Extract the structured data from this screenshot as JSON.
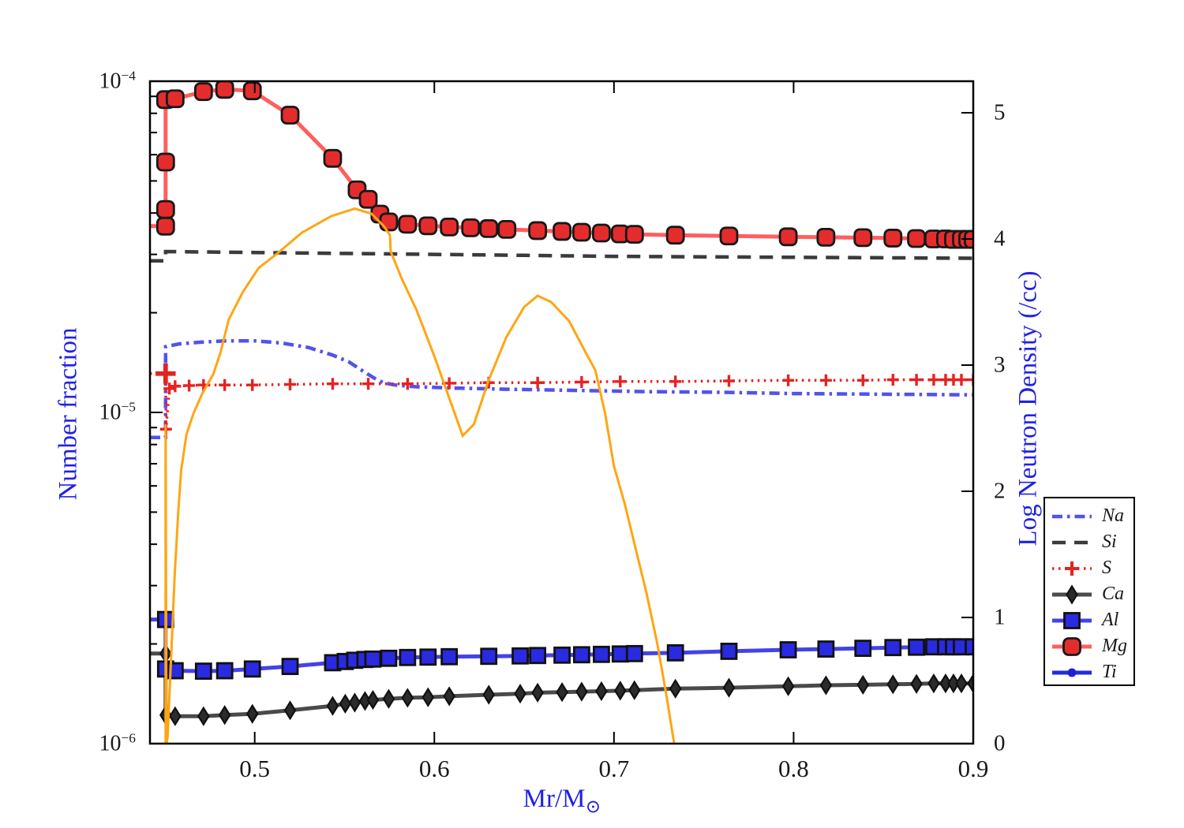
{
  "figure": {
    "background": "#ffffff",
    "frame_color": "#000000",
    "text_color": "#1a1a1a",
    "accent_blue": "#2121e6"
  },
  "chart_data": {
    "type": "line",
    "title": "",
    "x_axis": {
      "label": "Mr/M",
      "label_sub": "⊙",
      "min": 0.4417,
      "max": 0.9,
      "ticks": [
        0.5,
        0.6,
        0.7,
        0.8,
        0.9
      ],
      "tick_labels": [
        "0.5",
        "0.6",
        "0.7",
        "0.8",
        "0.9"
      ],
      "color": "#2121e6"
    },
    "y_left": {
      "label": "Number fraction",
      "scale": "log",
      "min": 1e-06,
      "max": 0.0001,
      "tick_values": [
        0.0001,
        1e-05,
        1e-06
      ],
      "tick_exponents": [
        "−4",
        "−5",
        "−6"
      ],
      "color": "#2121e6"
    },
    "y_right": {
      "label": "Log Neutron Density (/cc)",
      "scale": "linear",
      "min": 0,
      "max": 5.25,
      "ticks": [
        0,
        1,
        2,
        3,
        4,
        5
      ],
      "tick_labels": [
        "0",
        "1",
        "2",
        "3",
        "4",
        "5"
      ],
      "color": "#2121e6"
    },
    "legend_position": "outside-right",
    "series": [
      {
        "id": "Na",
        "label": "Na",
        "axis": "left",
        "in_legend": true,
        "color": "#5252ee",
        "linestyle": "dashdot",
        "line_width": 4.5,
        "marker": "none",
        "points": [
          [
            0.4417,
            8.4e-06
          ],
          [
            0.4504,
            8.4e-06
          ],
          [
            0.4504,
            1.58e-05
          ],
          [
            0.458,
            1.61e-05
          ],
          [
            0.47,
            1.63e-05
          ],
          [
            0.485,
            1.645e-05
          ],
          [
            0.5,
            1.645e-05
          ],
          [
            0.515,
            1.62e-05
          ],
          [
            0.53,
            1.57e-05
          ],
          [
            0.5434,
            1.49e-05
          ],
          [
            0.5525,
            1.42e-05
          ],
          [
            0.5605,
            1.33e-05
          ],
          [
            0.5665,
            1.27e-05
          ],
          [
            0.5715,
            1.23e-05
          ],
          [
            0.578,
            1.21e-05
          ],
          [
            0.59,
            1.195e-05
          ],
          [
            0.61,
            1.185e-05
          ],
          [
            0.64,
            1.175e-05
          ],
          [
            0.68,
            1.165e-05
          ],
          [
            0.72,
            1.155e-05
          ],
          [
            0.76,
            1.15e-05
          ],
          [
            0.8,
            1.14e-05
          ],
          [
            0.85,
            1.135e-05
          ],
          [
            0.9,
            1.13e-05
          ]
        ]
      },
      {
        "id": "Si",
        "label": "Si",
        "axis": "left",
        "in_legend": true,
        "color": "#3b3b3b",
        "linestyle": "dashed",
        "line_width": 4.5,
        "marker": "none",
        "points": [
          [
            0.4417,
            2.87e-05
          ],
          [
            0.4504,
            2.87e-05
          ],
          [
            0.4504,
            3.06e-05
          ],
          [
            0.5,
            3.04e-05
          ],
          [
            0.55,
            3.02e-05
          ],
          [
            0.6,
            3e-05
          ],
          [
            0.65,
            2.98e-05
          ],
          [
            0.7,
            2.96e-05
          ],
          [
            0.75,
            2.95e-05
          ],
          [
            0.8,
            2.94e-05
          ],
          [
            0.85,
            2.93e-05
          ],
          [
            0.9,
            2.92e-05
          ]
        ]
      },
      {
        "id": "S",
        "label": "S",
        "axis": "left",
        "in_legend": true,
        "color": "#e62222",
        "linestyle": "dotted",
        "line_width": 3.5,
        "marker": "plus",
        "marker_size": 15,
        "marker_fill": "#e62222",
        "marker_edge": "#e62222",
        "skip_first_marker": true,
        "big_marker_index": 1,
        "big_marker_scale": 1.7,
        "points": [
          [
            0.4417,
            1.31e-05
          ],
          [
            0.4504,
            1.31e-05
          ],
          [
            0.4506,
            8.9e-06
          ],
          [
            0.4525,
            1.18e-05
          ],
          [
            0.4557,
            1.2e-05
          ],
          [
            0.4635,
            1.205e-05
          ],
          [
            0.4715,
            1.21e-05
          ],
          [
            0.4833,
            1.21e-05
          ],
          [
            0.4987,
            1.21e-05
          ],
          [
            0.5197,
            1.215e-05
          ],
          [
            0.5434,
            1.22e-05
          ],
          [
            0.5632,
            1.22e-05
          ],
          [
            0.5851,
            1.22e-05
          ],
          [
            0.6083,
            1.225e-05
          ],
          [
            0.6303,
            1.23e-05
          ],
          [
            0.6575,
            1.23e-05
          ],
          [
            0.682,
            1.235e-05
          ],
          [
            0.7035,
            1.24e-05
          ],
          [
            0.7342,
            1.24e-05
          ],
          [
            0.764,
            1.245e-05
          ],
          [
            0.797,
            1.25e-05
          ],
          [
            0.818,
            1.25e-05
          ],
          [
            0.8386,
            1.25e-05
          ],
          [
            0.8553,
            1.255e-05
          ],
          [
            0.8684,
            1.255e-05
          ],
          [
            0.878,
            1.255e-05
          ],
          [
            0.8846,
            1.255e-05
          ],
          [
            0.889,
            1.255e-05
          ],
          [
            0.8934,
            1.255e-05
          ],
          [
            0.9,
            1.255e-05
          ]
        ]
      },
      {
        "id": "Ca",
        "label": "Ca",
        "axis": "left",
        "in_legend": true,
        "color": "#4a4a4a",
        "linestyle": "solid",
        "line_width": 5,
        "marker": "diamond",
        "marker_size": 21,
        "marker_fill": "#2b2b2b",
        "marker_edge": "#111111",
        "skip_first_marker": true,
        "points": [
          [
            0.4417,
            1.87e-06
          ],
          [
            0.4504,
            1.87e-06
          ],
          [
            0.4504,
            1.7e-06
          ],
          [
            0.4504,
            1.22e-06
          ],
          [
            0.4557,
            1.21e-06
          ],
          [
            0.4715,
            1.21e-06
          ],
          [
            0.4833,
            1.22e-06
          ],
          [
            0.4987,
            1.23e-06
          ],
          [
            0.5197,
            1.26e-06
          ],
          [
            0.5434,
            1.3e-06
          ],
          [
            0.5504,
            1.32e-06
          ],
          [
            0.5557,
            1.33e-06
          ],
          [
            0.5614,
            1.345e-06
          ],
          [
            0.5658,
            1.355e-06
          ],
          [
            0.5746,
            1.365e-06
          ],
          [
            0.5851,
            1.375e-06
          ],
          [
            0.5965,
            1.38e-06
          ],
          [
            0.6083,
            1.39e-06
          ],
          [
            0.6303,
            1.405e-06
          ],
          [
            0.6478,
            1.415e-06
          ],
          [
            0.6575,
            1.425e-06
          ],
          [
            0.6711,
            1.43e-06
          ],
          [
            0.682,
            1.435e-06
          ],
          [
            0.693,
            1.44e-06
          ],
          [
            0.7035,
            1.445e-06
          ],
          [
            0.7114,
            1.45e-06
          ],
          [
            0.7342,
            1.465e-06
          ],
          [
            0.764,
            1.475e-06
          ],
          [
            0.797,
            1.49e-06
          ],
          [
            0.818,
            1.5e-06
          ],
          [
            0.8386,
            1.505e-06
          ],
          [
            0.8553,
            1.51e-06
          ],
          [
            0.8684,
            1.515e-06
          ],
          [
            0.878,
            1.52e-06
          ],
          [
            0.8846,
            1.52e-06
          ],
          [
            0.889,
            1.52e-06
          ],
          [
            0.8934,
            1.52e-06
          ],
          [
            0.9,
            1.52e-06
          ]
        ]
      },
      {
        "id": "Al",
        "label": "Al",
        "axis": "left",
        "in_legend": true,
        "color": "#4343e8",
        "linestyle": "solid",
        "line_width": 5,
        "marker": "square",
        "marker_size": 19,
        "marker_fill": "#2a2ae0",
        "marker_edge": "#111111",
        "skip_first_marker": true,
        "points": [
          [
            0.4417,
            2.37e-06
          ],
          [
            0.4504,
            2.37e-06
          ],
          [
            0.4504,
            1.68e-06
          ],
          [
            0.4557,
            1.66e-06
          ],
          [
            0.4715,
            1.655e-06
          ],
          [
            0.4833,
            1.66e-06
          ],
          [
            0.4987,
            1.68e-06
          ],
          [
            0.5197,
            1.71e-06
          ],
          [
            0.5434,
            1.755e-06
          ],
          [
            0.5504,
            1.77e-06
          ],
          [
            0.5557,
            1.785e-06
          ],
          [
            0.5614,
            1.795e-06
          ],
          [
            0.5658,
            1.8e-06
          ],
          [
            0.5746,
            1.81e-06
          ],
          [
            0.5851,
            1.82e-06
          ],
          [
            0.5965,
            1.825e-06
          ],
          [
            0.6083,
            1.83e-06
          ],
          [
            0.6303,
            1.835e-06
          ],
          [
            0.6478,
            1.84e-06
          ],
          [
            0.6575,
            1.845e-06
          ],
          [
            0.6711,
            1.85e-06
          ],
          [
            0.682,
            1.855e-06
          ],
          [
            0.693,
            1.86e-06
          ],
          [
            0.7035,
            1.865e-06
          ],
          [
            0.7114,
            1.87e-06
          ],
          [
            0.7342,
            1.88e-06
          ],
          [
            0.764,
            1.9e-06
          ],
          [
            0.797,
            1.92e-06
          ],
          [
            0.818,
            1.93e-06
          ],
          [
            0.8386,
            1.94e-06
          ],
          [
            0.8553,
            1.95e-06
          ],
          [
            0.8684,
            1.955e-06
          ],
          [
            0.878,
            1.96e-06
          ],
          [
            0.8846,
            1.96e-06
          ],
          [
            0.889,
            1.96e-06
          ],
          [
            0.8934,
            1.96e-06
          ],
          [
            0.9,
            1.96e-06
          ]
        ]
      },
      {
        "id": "Mg",
        "label": "Mg",
        "axis": "left",
        "in_legend": true,
        "color": "#ff5f5f",
        "linestyle": "solid",
        "line_width": 5,
        "marker": "rounded-square",
        "marker_size": 21,
        "marker_fill": "#e52c2c",
        "marker_edge": "#181818",
        "skip_first_marker": true,
        "points": [
          [
            0.4417,
            3.65e-05
          ],
          [
            0.4504,
            3.65e-05
          ],
          [
            0.4504,
            4.1e-05
          ],
          [
            0.4504,
            5.7e-05
          ],
          [
            0.4504,
            8.8e-05
          ],
          [
            0.4557,
            8.85e-05
          ],
          [
            0.4715,
            9.3e-05
          ],
          [
            0.4833,
            9.45e-05
          ],
          [
            0.4987,
            9.35e-05
          ],
          [
            0.5197,
            7.9e-05
          ],
          [
            0.5434,
            5.85e-05
          ],
          [
            0.557,
            4.7e-05
          ],
          [
            0.5632,
            4.4e-05
          ],
          [
            0.5697,
            3.97e-05
          ],
          [
            0.5746,
            3.76e-05
          ],
          [
            0.5851,
            3.7e-05
          ],
          [
            0.5965,
            3.66e-05
          ],
          [
            0.6083,
            3.63e-05
          ],
          [
            0.6202,
            3.61e-05
          ],
          [
            0.6303,
            3.59e-05
          ],
          [
            0.6404,
            3.57e-05
          ],
          [
            0.6575,
            3.54e-05
          ],
          [
            0.6711,
            3.52e-05
          ],
          [
            0.682,
            3.5e-05
          ],
          [
            0.693,
            3.48e-05
          ],
          [
            0.7035,
            3.46e-05
          ],
          [
            0.7114,
            3.45e-05
          ],
          [
            0.7342,
            3.43e-05
          ],
          [
            0.764,
            3.41e-05
          ],
          [
            0.797,
            3.39e-05
          ],
          [
            0.818,
            3.38e-05
          ],
          [
            0.8386,
            3.37e-05
          ],
          [
            0.8553,
            3.36e-05
          ],
          [
            0.8684,
            3.35e-05
          ],
          [
            0.878,
            3.34e-05
          ],
          [
            0.8846,
            3.34e-05
          ],
          [
            0.889,
            3.33e-05
          ],
          [
            0.8934,
            3.33e-05
          ],
          [
            0.8969,
            3.33e-05
          ],
          [
            0.9,
            3.33e-05
          ]
        ]
      },
      {
        "id": "Ti",
        "label": "Ti",
        "axis": "left",
        "in_legend": true,
        "color": "#2828d8",
        "linestyle": "solid",
        "line_width": 5,
        "marker": "circle",
        "marker_size": 11,
        "marker_fill": "#2020d0",
        "marker_edge": "#2020d0",
        "points": []
      },
      {
        "id": "neutron_density",
        "label": "",
        "axis": "right",
        "in_legend": false,
        "color": "#ffa513",
        "linestyle": "solid",
        "line_width": 3,
        "marker": "none",
        "points": [
          [
            0.4504,
            0.0
          ],
          [
            0.4504,
            2.53
          ],
          [
            0.4509,
            0.0
          ],
          [
            0.4515,
            0.05
          ],
          [
            0.4535,
            0.7
          ],
          [
            0.4555,
            1.35
          ],
          [
            0.4575,
            1.85
          ],
          [
            0.459,
            2.16
          ],
          [
            0.462,
            2.45
          ],
          [
            0.466,
            2.62
          ],
          [
            0.471,
            2.78
          ],
          [
            0.477,
            2.93
          ],
          [
            0.481,
            3.1
          ],
          [
            0.4855,
            3.36
          ],
          [
            0.4934,
            3.58
          ],
          [
            0.5022,
            3.77
          ],
          [
            0.513,
            3.89
          ],
          [
            0.5263,
            4.05
          ],
          [
            0.5425,
            4.18
          ],
          [
            0.5557,
            4.24
          ],
          [
            0.565,
            4.2
          ],
          [
            0.572,
            4.1
          ],
          [
            0.5753,
            4.03
          ],
          [
            0.5757,
            3.9
          ],
          [
            0.582,
            3.68
          ],
          [
            0.59,
            3.44
          ],
          [
            0.6,
            3.07
          ],
          [
            0.608,
            2.75
          ],
          [
            0.6158,
            2.44
          ],
          [
            0.622,
            2.53
          ],
          [
            0.63,
            2.87
          ],
          [
            0.64,
            3.22
          ],
          [
            0.65,
            3.46
          ],
          [
            0.6575,
            3.55
          ],
          [
            0.665,
            3.5
          ],
          [
            0.675,
            3.35
          ],
          [
            0.685,
            3.08
          ],
          [
            0.6896,
            2.96
          ],
          [
            0.695,
            2.62
          ],
          [
            0.7,
            2.2
          ],
          [
            0.706,
            1.9
          ],
          [
            0.712,
            1.55
          ],
          [
            0.718,
            1.2
          ],
          [
            0.724,
            0.8
          ],
          [
            0.729,
            0.4
          ],
          [
            0.7335,
            0.0
          ]
        ]
      }
    ]
  }
}
